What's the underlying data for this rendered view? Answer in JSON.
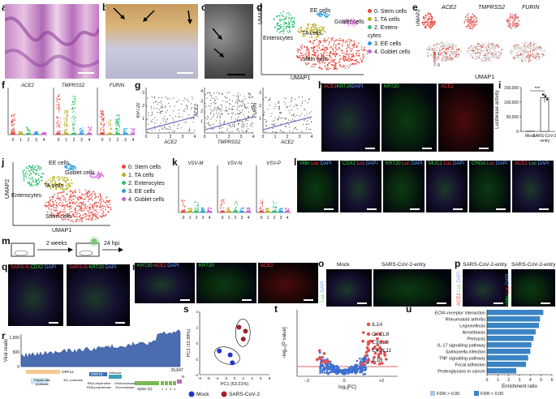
{
  "panels": {
    "a": "a",
    "b": "b",
    "c": "c",
    "d": "d",
    "e": "e",
    "f": "f",
    "g": "g",
    "h": "h",
    "i": "i",
    "j": "j",
    "k": "k",
    "l": "l",
    "m": "m",
    "n": "n",
    "o": "o",
    "p": "p",
    "q": "q",
    "r": "r",
    "s": "s",
    "t": "t",
    "u": "u"
  },
  "umap": {
    "xlabel": "UMAP1",
    "ylabel": "UMAP2",
    "d_labels": {
      "ee": "EE cells",
      "goblet": "Goblet cells",
      "ta": "TA cells",
      "entero": "Enterocytes",
      "stem": "Stem cells"
    },
    "legend": [
      {
        "label": "0. Stem cells",
        "color": "#e8483f"
      },
      {
        "label": "1. TA cells",
        "color": "#b8b020"
      },
      {
        "label": "2. Entero-\ncytes",
        "color": "#2fbf72"
      },
      {
        "label": "3. EE cells",
        "color": "#2e9fe0"
      },
      {
        "label": "4. Goblet cells",
        "color": "#d05fd8"
      }
    ],
    "legend_j": [
      {
        "label": "0. Stem cells",
        "color": "#e8483f"
      },
      {
        "label": "1. TA cells",
        "color": "#b8b020"
      },
      {
        "label": "2. Enterocytes",
        "color": "#2fbf72"
      },
      {
        "label": "3. EE cells",
        "color": "#2e9fe0"
      },
      {
        "label": "4. Goblet cells",
        "color": "#d05fd8"
      }
    ]
  },
  "panel_e": {
    "genes": [
      "ACE2",
      "TMPRSS2",
      "FURIN"
    ],
    "scale": [
      "1",
      "0"
    ]
  },
  "panel_f": {
    "genes": [
      "ACE2",
      "TMPRSS2",
      "FURIN"
    ],
    "xticks": [
      "0",
      "1",
      "2",
      "3",
      "4"
    ]
  },
  "panel_g": {
    "plots": [
      {
        "x": "ACE2",
        "y": "KRT20",
        "xticks": [
          "0",
          "1",
          "2",
          "3",
          "4"
        ],
        "yticks": [
          "1",
          "2",
          "3"
        ]
      },
      {
        "x": "TMPRSS2",
        "y": "ACE2",
        "xticks": [
          "0",
          "1",
          "2",
          "3",
          "4"
        ],
        "yticks": [
          "1",
          "2",
          "3",
          "4"
        ]
      },
      {
        "x": "ACE2",
        "y": "FURIN",
        "xticks": [
          "0",
          "1",
          "2",
          "3",
          "4"
        ],
        "yticks": [
          "1",
          "2",
          "3"
        ]
      }
    ]
  },
  "panel_h": {
    "labels": [
      [
        {
          "t": "ACE2",
          "c": "#ff4040"
        },
        {
          "t": "KRT20",
          "c": "#3ddc3d"
        },
        {
          "t": "DAPI",
          "c": "#6aa0ff"
        }
      ],
      [
        {
          "t": "KRT20",
          "c": "#3ddc3d"
        }
      ],
      [
        {
          "t": "ACE2",
          "c": "#ff4040"
        }
      ]
    ]
  },
  "chart_data": {
    "type": "bar",
    "categories": [
      "Mock",
      "SARS-CoV-2\n-entry"
    ],
    "values": [
      500,
      115000
    ],
    "ylabel": "Luciferase activity",
    "ylim": [
      0,
      150000
    ],
    "yticks": [
      "0",
      "50,000",
      "100,000",
      "150,000"
    ],
    "significance": "***"
  },
  "panel_k": {
    "genes": [
      "VSV-M",
      "VSV-N",
      "VSV-P"
    ],
    "xticks": [
      "0",
      "1",
      "2",
      "3",
      "4"
    ]
  },
  "panel_l": {
    "labels": [
      [
        {
          "t": "Villin",
          "c": "#3ddc3d"
        },
        {
          "t": " Luc",
          "c": "#ff4040"
        },
        {
          "t": " DAPI",
          "c": "#6aa0ff"
        }
      ],
      [
        {
          "t": "CDX2",
          "c": "#3ddc3d"
        },
        {
          "t": " Luc",
          "c": "#ff4040"
        },
        {
          "t": " DAPI",
          "c": "#6aa0ff"
        }
      ],
      [
        {
          "t": "KRT20",
          "c": "#3ddc3d"
        },
        {
          "t": " Luc",
          "c": "#ff4040"
        },
        {
          "t": " DAPI",
          "c": "#6aa0ff"
        }
      ],
      [
        {
          "t": "MUC2",
          "c": "#3ddc3d"
        },
        {
          "t": " Luc",
          "c": "#ff4040"
        },
        {
          "t": " DAPI",
          "c": "#6aa0ff"
        }
      ],
      [
        {
          "t": "CHGA",
          "c": "#3ddc3d"
        },
        {
          "t": " Luc",
          "c": "#ff4040"
        },
        {
          "t": " DAPI",
          "c": "#6aa0ff"
        }
      ],
      [
        {
          "t": "ACE2",
          "c": "#ff4040"
        },
        {
          "t": " Luc",
          "c": "#3ddc3d"
        },
        {
          "t": " DAPI",
          "c": "#6aa0ff"
        }
      ]
    ]
  },
  "panel_m": {
    "t1": "2 weeks",
    "t2": "24 hpi"
  },
  "panel_n": {
    "labels": [
      [
        {
          "t": "KRT20",
          "c": "#3ddc3d"
        },
        {
          "t": " ACE2",
          "c": "#ff4040"
        },
        {
          "t": " DAPI",
          "c": "#6aa0ff"
        }
      ],
      [
        {
          "t": "KRT20",
          "c": "#3ddc3d"
        }
      ],
      [
        {
          "t": "ACE2",
          "c": "#ff4040"
        }
      ]
    ]
  },
  "panel_o": {
    "titles": [
      "Mock",
      "SARS-CoV-2-entry"
    ],
    "side": [
      {
        "t": "Luc",
        "c": "#3ddc3d"
      },
      {
        "t": " DAPI",
        "c": "#6aa0ff"
      }
    ]
  },
  "panel_p": {
    "titles": [
      "SARS-CoV-2-entry",
      "SARS-CoV-2-entry"
    ],
    "side1": [
      {
        "t": "ACE2",
        "c": "#ff4040"
      },
      {
        "t": " Luc",
        "c": "#3ddc3d"
      },
      {
        "t": " DAPI",
        "c": "#6aa0ff"
      }
    ],
    "side2": [
      {
        "t": "Villin",
        "c": "#3ddc3d"
      },
      {
        "t": " Luc",
        "c": "#ff4040"
      },
      {
        "t": " DAPI",
        "c": "#6aa0ff"
      }
    ]
  },
  "panel_q": {
    "labels": [
      [
        {
          "t": "SARS-N",
          "c": "#ff4040"
        },
        {
          "t": " CDX2",
          "c": "#3ddc3d"
        },
        {
          "t": " DAPI",
          "c": "#6aa0ff"
        }
      ],
      [
        {
          "t": "SARS-N",
          "c": "#ff4040"
        },
        {
          "t": " KRT20",
          "c": "#3ddc3d"
        },
        {
          "t": " DAPI",
          "c": "#6aa0ff"
        }
      ]
    ]
  },
  "panel_r": {
    "ylabel": "Viral reads",
    "yticks": [
      "0",
      "500",
      "1,000"
    ],
    "end": "29,847",
    "genes": {
      "orf1a": "ORF1a",
      "orf1b": "ORF1b",
      "spike": "Spike (S)",
      "n": "N"
    },
    "annot": [
      "Papain-like\nprotease",
      "3CL protease",
      "RNA-dependent\nRNA polymerase",
      "Helicase",
      "Endonuclease",
      "Exonuclease"
    ],
    "nums": [
      "1",
      "2",
      "3",
      "4"
    ]
  },
  "panel_s": {
    "xlabel": "PC1 (63.31%)",
    "ylabel": "PC2 (15.99%)",
    "xticks": [
      "-8",
      "-6",
      "-4",
      "-2",
      "0",
      "2",
      "4",
      "6",
      "8"
    ],
    "yticks": [
      "-4",
      "-2",
      "0",
      "2",
      "4"
    ],
    "legend": [
      {
        "label": "Mock",
        "color": "#2233cc"
      },
      {
        "label": "SARS-CoV-2",
        "color": "#a0202a"
      }
    ],
    "points": [
      {
        "x": -3.5,
        "y": -1.0,
        "g": 0
      },
      {
        "x": -1.0,
        "y": -1.5,
        "g": 0
      },
      {
        "x": -0.5,
        "y": -2.5,
        "g": 0
      },
      {
        "x": 1.0,
        "y": 2.0,
        "g": 1
      },
      {
        "x": 2.5,
        "y": 1.5,
        "g": 1
      },
      {
        "x": 2.0,
        "y": 0.5,
        "g": 1
      }
    ],
    "xlim": [
      -8,
      8
    ],
    "ylim": [
      -4,
      4
    ]
  },
  "panel_t": {
    "xlabel": "log₂[FC]",
    "ylabel": "−log₁₀[P value]",
    "xticks": [
      "−2",
      "0",
      "+2"
    ],
    "genes": [
      "IL1A",
      "CXCL8",
      "CXCL6",
      "CXCL11",
      "IL1B"
    ]
  },
  "panel_u": {
    "xlabel": "Enrichment ratio",
    "xticks": [
      "0",
      "1",
      "2",
      "3",
      "4",
      "5",
      "6"
    ],
    "xlim": [
      0,
      6
    ],
    "terms": [
      {
        "label": "ECM–receptor interaction",
        "value": 5.2,
        "fdr": 0
      },
      {
        "label": "Rheumatoid arthritis",
        "value": 4.9,
        "fdr": 0
      },
      {
        "label": "Legionellosis",
        "value": 4.8,
        "fdr": 0
      },
      {
        "label": "Amoebiasis",
        "value": 4.5,
        "fdr": 0
      },
      {
        "label": "Pertussis",
        "value": 4.3,
        "fdr": 0
      },
      {
        "label": "IL-17 signalling pathway",
        "value": 4.1,
        "fdr": 0
      },
      {
        "label": "Salmonella infection",
        "value": 4.0,
        "fdr": 0
      },
      {
        "label": "TNF signalling pathway",
        "value": 3.8,
        "fdr": 0
      },
      {
        "label": "Focal adhesion",
        "value": 3.6,
        "fdr": 0
      },
      {
        "label": "Proteoglycans in cancer",
        "value": 2.7,
        "fdr": 0
      }
    ],
    "legend": [
      {
        "label": "FDR > 0.05",
        "color": "#a9c6e3"
      },
      {
        "label": "FDR < 0.05",
        "color": "#3b84c4"
      }
    ]
  },
  "colors": {
    "stem": "#e8483f",
    "ta": "#b8b020",
    "entero": "#2fbf72",
    "ee": "#2e9fe0",
    "goblet": "#d05fd8",
    "bar": "#3b84c4"
  }
}
